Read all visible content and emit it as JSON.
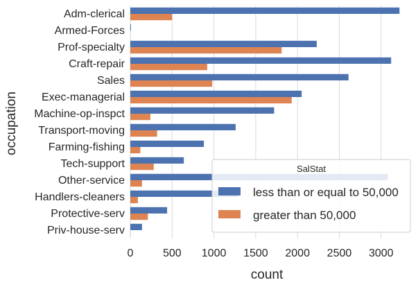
{
  "chart_data": {
    "type": "bar",
    "orientation": "horizontal",
    "categories": [
      "Adm-clerical",
      "Armed-Forces",
      "Prof-specialty",
      "Craft-repair",
      "Sales",
      "Exec-managerial",
      "Machine-op-inspct",
      "Transport-moving",
      "Farming-fishing",
      "Tech-support",
      "Other-service",
      "Handlers-cleaners",
      "Protective-serv",
      "Priv-house-serv"
    ],
    "series": [
      {
        "name": "less than or equal to 50,000",
        "color": "#4c72b0",
        "values": [
          3220,
          8,
          2230,
          3120,
          2610,
          2050,
          1720,
          1260,
          880,
          640,
          3080,
          1290,
          440,
          140
        ]
      },
      {
        "name": "greater than 50,000",
        "color": "#dd8452",
        "values": [
          500,
          1,
          1810,
          920,
          980,
          1930,
          240,
          320,
          120,
          280,
          140,
          90,
          210,
          2
        ]
      }
    ],
    "xlabel": "count",
    "ylabel": "occupation",
    "xlim": [
      0,
      3400
    ],
    "xticks": [
      0,
      500,
      1000,
      1500,
      2000,
      2500,
      3000
    ],
    "grid": "vertical",
    "legend": {
      "title": "SalStat",
      "placement": "lower-right"
    }
  }
}
